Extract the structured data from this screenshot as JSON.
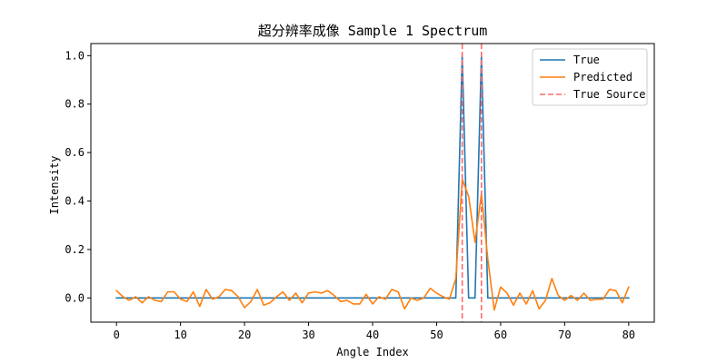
{
  "chart_data": {
    "type": "line",
    "title": "超分辨率成像 Sample 1 Spectrum",
    "xlabel": "Angle Index",
    "ylabel": "Intensity",
    "xlim": [
      -4,
      84
    ],
    "ylim": [
      -0.1,
      1.05
    ],
    "xticks": [
      0,
      10,
      20,
      30,
      40,
      50,
      60,
      70,
      80
    ],
    "yticks": [
      0.0,
      0.2,
      0.4,
      0.6,
      0.8,
      1.0
    ],
    "legend_position": "top-right",
    "series": [
      {
        "name": "True",
        "color": "#1f77b4",
        "x": [
          0,
          1,
          2,
          3,
          4,
          5,
          6,
          7,
          8,
          9,
          10,
          11,
          12,
          13,
          14,
          15,
          16,
          17,
          18,
          19,
          20,
          21,
          22,
          23,
          24,
          25,
          26,
          27,
          28,
          29,
          30,
          31,
          32,
          33,
          34,
          35,
          36,
          37,
          38,
          39,
          40,
          41,
          42,
          43,
          44,
          45,
          46,
          47,
          48,
          49,
          50,
          51,
          52,
          53,
          54,
          55,
          56,
          57,
          58,
          59,
          60,
          61,
          62,
          63,
          64,
          65,
          66,
          67,
          68,
          69,
          70,
          71,
          72,
          73,
          74,
          75,
          76,
          77,
          78,
          79,
          80
        ],
        "values": [
          0,
          0,
          0,
          0,
          0,
          0,
          0,
          0,
          0,
          0,
          0,
          0,
          0,
          0,
          0,
          0,
          0,
          0,
          0,
          0,
          0,
          0,
          0,
          0,
          0,
          0,
          0,
          0,
          0,
          0,
          0,
          0,
          0,
          0,
          0,
          0,
          0,
          0,
          0,
          0,
          0,
          0,
          0,
          0,
          0,
          0,
          0,
          0,
          0,
          0,
          0,
          0,
          0,
          0,
          1,
          0,
          0,
          1,
          0,
          0,
          0,
          0,
          0,
          0,
          0,
          0,
          0,
          0,
          0,
          0,
          0,
          0,
          0,
          0,
          0,
          0,
          0,
          0,
          0,
          0,
          0
        ]
      },
      {
        "name": "Predicted",
        "color": "#ff7f0e",
        "x": [
          0,
          1,
          2,
          3,
          4,
          5,
          6,
          7,
          8,
          9,
          10,
          11,
          12,
          13,
          14,
          15,
          16,
          17,
          18,
          19,
          20,
          21,
          22,
          23,
          24,
          25,
          26,
          27,
          28,
          29,
          30,
          31,
          32,
          33,
          34,
          35,
          36,
          37,
          38,
          39,
          40,
          41,
          42,
          43,
          44,
          45,
          46,
          47,
          48,
          49,
          50,
          51,
          52,
          53,
          54,
          55,
          56,
          57,
          58,
          59,
          60,
          61,
          62,
          63,
          64,
          65,
          66,
          67,
          68,
          69,
          70,
          71,
          72,
          73,
          74,
          75,
          76,
          77,
          78,
          79,
          80
        ],
        "values": [
          0.03,
          0.005,
          -0.01,
          0.005,
          -0.02,
          0.005,
          -0.01,
          -0.015,
          0.025,
          0.025,
          -0.005,
          -0.015,
          0.025,
          -0.035,
          0.035,
          -0.005,
          0.005,
          0.035,
          0.03,
          0.005,
          -0.04,
          -0.015,
          0.035,
          -0.03,
          -0.02,
          0.005,
          0.025,
          -0.01,
          0.02,
          -0.02,
          0.02,
          0.025,
          0.02,
          0.03,
          0.01,
          -0.015,
          -0.01,
          -0.025,
          -0.025,
          0.015,
          -0.025,
          0.005,
          -0.005,
          0.035,
          0.025,
          -0.045,
          0.0,
          -0.01,
          0.0,
          0.04,
          0.02,
          0.005,
          -0.005,
          0.08,
          0.49,
          0.42,
          0.23,
          0.43,
          0.16,
          -0.05,
          0.045,
          0.02,
          -0.03,
          0.02,
          -0.025,
          0.03,
          -0.045,
          -0.01,
          0.08,
          0.01,
          -0.01,
          0.01,
          -0.01,
          0.02,
          -0.01,
          -0.005,
          -0.005,
          0.035,
          0.03,
          -0.02,
          0.045
        ]
      }
    ],
    "vlines": {
      "name": "True Source",
      "color": "#ff6b6b",
      "style": "dashed",
      "x": [
        54,
        57
      ]
    }
  }
}
